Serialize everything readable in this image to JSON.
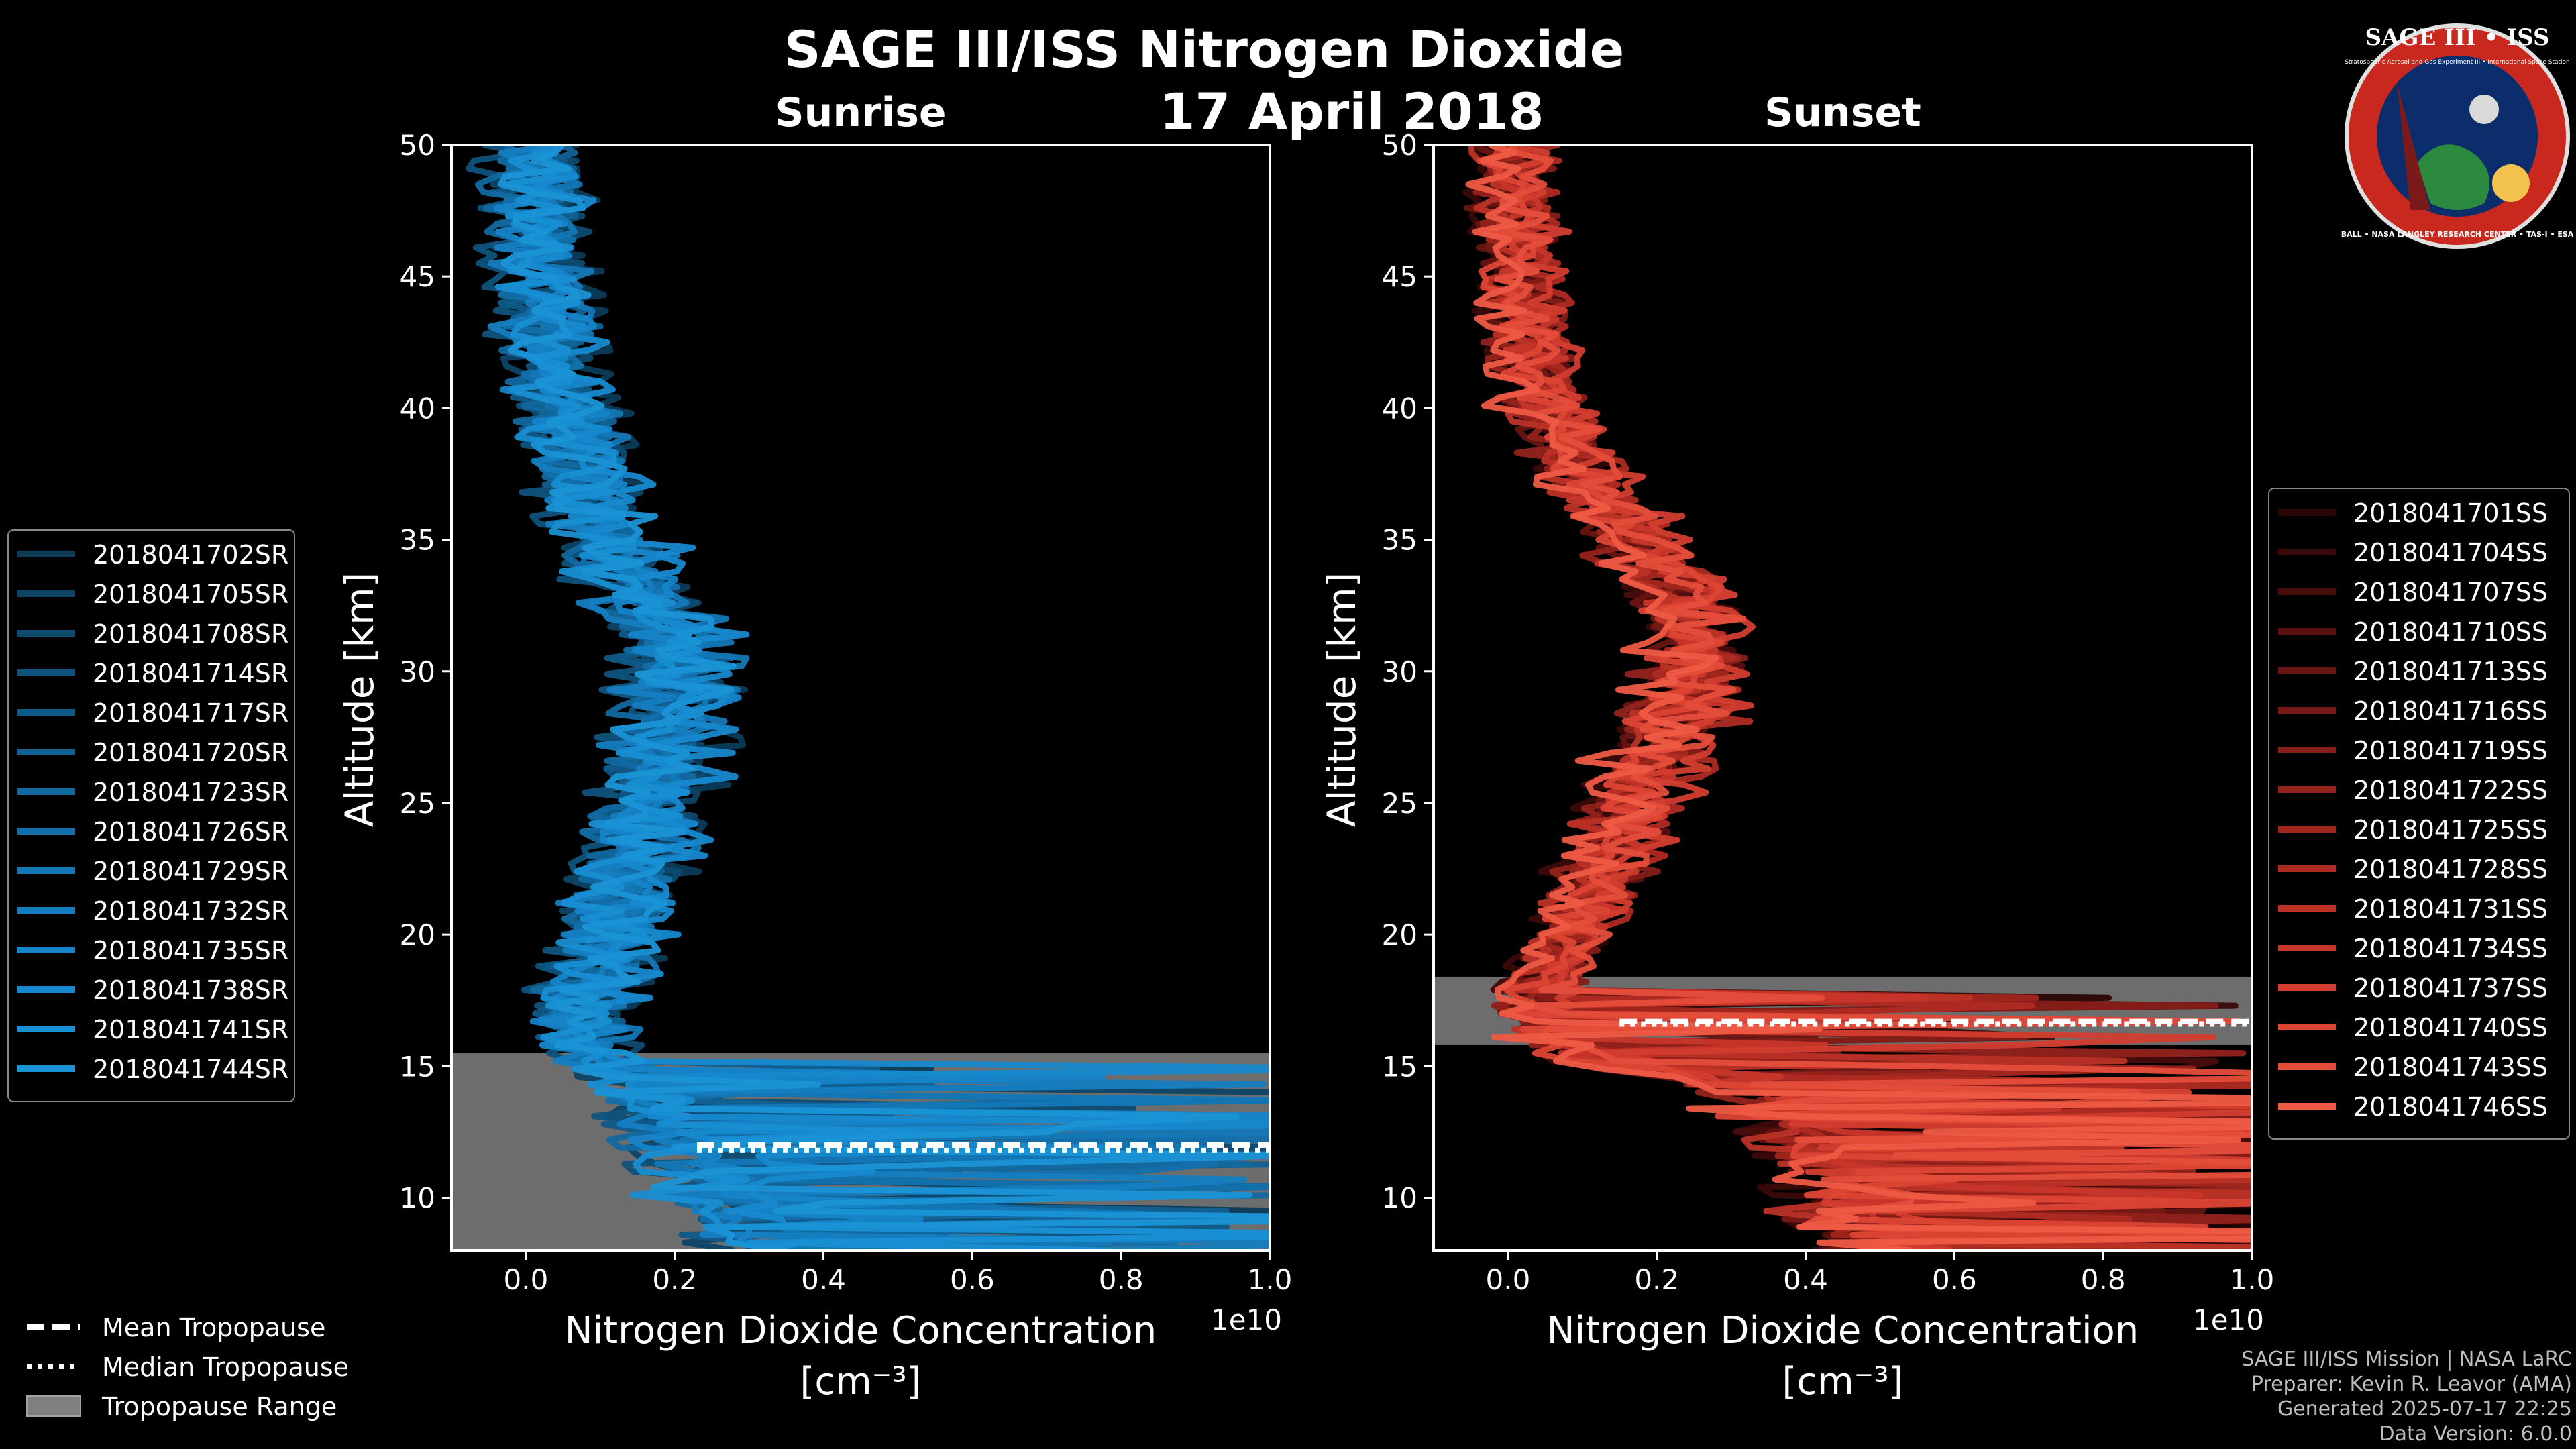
{
  "figure": {
    "title": "SAGE III/ISS Nitrogen Dioxide",
    "date": "17 April 2018"
  },
  "colors": {
    "background": "#000000",
    "sunrise": "#1d91d0",
    "sunset": "#ee5a45",
    "tropopause_range": "#808080",
    "axes": "#ffffff"
  },
  "chart_data": [
    {
      "type": "line",
      "panel": "sunrise",
      "title": "Sunrise",
      "xlabel": "Nitrogen Dioxide Concentration",
      "xlabel_units": "[cm⁻³]",
      "ylabel": "Altitude [km]",
      "x_scale_note": "1e10",
      "xlim": [
        -0.1,
        1.0
      ],
      "ylim": [
        8,
        50
      ],
      "xticks": [
        0.0,
        0.2,
        0.4,
        0.6,
        0.8,
        1.0
      ],
      "xtick_labels": [
        "0.0",
        "0.2",
        "0.4",
        "0.6",
        "0.8",
        "1.0"
      ],
      "yticks": [
        10,
        15,
        20,
        25,
        30,
        35,
        40,
        45,
        50
      ],
      "ytick_labels": [
        "10",
        "15",
        "20",
        "25",
        "30",
        "35",
        "40",
        "45",
        "50"
      ],
      "mean_profile": {
        "altitude_km": [
          8,
          10,
          12,
          14,
          15,
          16,
          17,
          18,
          19,
          20,
          21,
          22,
          23,
          24,
          25,
          26,
          27,
          28,
          29,
          30,
          31,
          32,
          33,
          34,
          35,
          36,
          37,
          38,
          39,
          40,
          41,
          42,
          43,
          44,
          45,
          46,
          47,
          48,
          49,
          50
        ],
        "value": [
          0.3,
          0.25,
          0.2,
          0.15,
          0.1,
          0.08,
          0.08,
          0.09,
          0.1,
          0.11,
          0.12,
          0.13,
          0.14,
          0.15,
          0.16,
          0.17,
          0.18,
          0.19,
          0.2,
          0.2,
          0.19,
          0.17,
          0.15,
          0.13,
          0.11,
          0.09,
          0.08,
          0.07,
          0.06,
          0.05,
          0.04,
          0.035,
          0.03,
          0.025,
          0.02,
          0.018,
          0.015,
          0.012,
          0.01,
          0.008
        ]
      },
      "tropopause_range": [
        8,
        15.5
      ],
      "mean_tropopause_km": 12.0,
      "median_tropopause_km": 11.8,
      "tropopause_start_x": 0.23,
      "series_names": [
        "2018041702SR",
        "2018041705SR",
        "2018041708SR",
        "2018041714SR",
        "2018041717SR",
        "2018041720SR",
        "2018041723SR",
        "2018041726SR",
        "2018041729SR",
        "2018041732SR",
        "2018041735SR",
        "2018041738SR",
        "2018041741SR",
        "2018041744SR"
      ],
      "series_colors": [
        "#0c3c5a",
        "#0d4466",
        "#0e4b71",
        "#0f537d",
        "#105a89",
        "#116194",
        "#1269a0",
        "#1370ab",
        "#1477b6",
        "#157ec1",
        "#1684c9",
        "#1789cf",
        "#188ed3",
        "#1a93d6"
      ]
    },
    {
      "type": "line",
      "panel": "sunset",
      "title": "Sunset",
      "xlabel": "Nitrogen Dioxide Concentration",
      "xlabel_units": "[cm⁻³]",
      "ylabel": "Altitude [km]",
      "x_scale_note": "1e10",
      "xlim": [
        -0.1,
        1.0
      ],
      "ylim": [
        8,
        50
      ],
      "xticks": [
        0.0,
        0.2,
        0.4,
        0.6,
        0.8,
        1.0
      ],
      "xtick_labels": [
        "0.0",
        "0.2",
        "0.4",
        "0.6",
        "0.8",
        "1.0"
      ],
      "yticks": [
        10,
        15,
        20,
        25,
        30,
        35,
        40,
        45,
        50
      ],
      "ytick_labels": [
        "10",
        "15",
        "20",
        "25",
        "30",
        "35",
        "40",
        "45",
        "50"
      ],
      "mean_profile": {
        "altitude_km": [
          8,
          10,
          12,
          14,
          15,
          16,
          17,
          18,
          19,
          20,
          21,
          22,
          23,
          24,
          25,
          26,
          27,
          28,
          29,
          30,
          31,
          32,
          33,
          34,
          35,
          36,
          37,
          38,
          39,
          40,
          41,
          42,
          43,
          44,
          45,
          46,
          47,
          48,
          49,
          50
        ],
        "value": [
          0.5,
          0.45,
          0.4,
          0.35,
          0.15,
          0.05,
          0.03,
          0.04,
          0.06,
          0.08,
          0.1,
          0.12,
          0.13,
          0.15,
          0.16,
          0.18,
          0.2,
          0.22,
          0.23,
          0.24,
          0.25,
          0.25,
          0.23,
          0.2,
          0.17,
          0.14,
          0.11,
          0.09,
          0.07,
          0.05,
          0.04,
          0.03,
          0.025,
          0.02,
          0.015,
          0.012,
          0.01,
          0.008,
          0.006,
          0.005
        ]
      },
      "tropopause_range": [
        15.8,
        18.4
      ],
      "mean_tropopause_km": 16.7,
      "median_tropopause_km": 16.6,
      "tropopause_start_x": 0.15,
      "series_names": [
        "2018041701SS",
        "2018041704SS",
        "2018041707SS",
        "2018041710SS",
        "2018041713SS",
        "2018041716SS",
        "2018041719SS",
        "2018041722SS",
        "2018041725SS",
        "2018041728SS",
        "2018041731SS",
        "2018041734SS",
        "2018041737SS",
        "2018041740SS",
        "2018041743SS",
        "2018041746SS"
      ],
      "series_colors": [
        "#2b0606",
        "#3a0a0a",
        "#490d0c",
        "#58110f",
        "#671512",
        "#761915",
        "#851d18",
        "#93221b",
        "#a1261e",
        "#ae2b22",
        "#bb3126",
        "#c7362a",
        "#d23d2f",
        "#dc4434",
        "#e54d3b",
        "#ee5a45"
      ]
    }
  ],
  "bottom_legend": [
    {
      "label": "Mean Tropopause",
      "style": "dashed"
    },
    {
      "label": "Median Tropopause",
      "style": "dotted"
    },
    {
      "label": "Tropopause Range",
      "style": "patch"
    }
  ],
  "credits": {
    "line1": "SAGE III/ISS Mission | NASA LaRC",
    "line2": "Preparer: Kevin R. Leavor (AMA)",
    "line3": "Generated 2025-07-17 22:25",
    "line4": "Data Version: 6.0.0"
  },
  "logo": {
    "title": "SAGE III • ISS",
    "subtitle": "Stratospheric Aerosol and Gas Experiment III • International Space Station",
    "ring": "BALL • NASA LANGLEY RESEARCH CENTER • TAS-I • ESA"
  }
}
